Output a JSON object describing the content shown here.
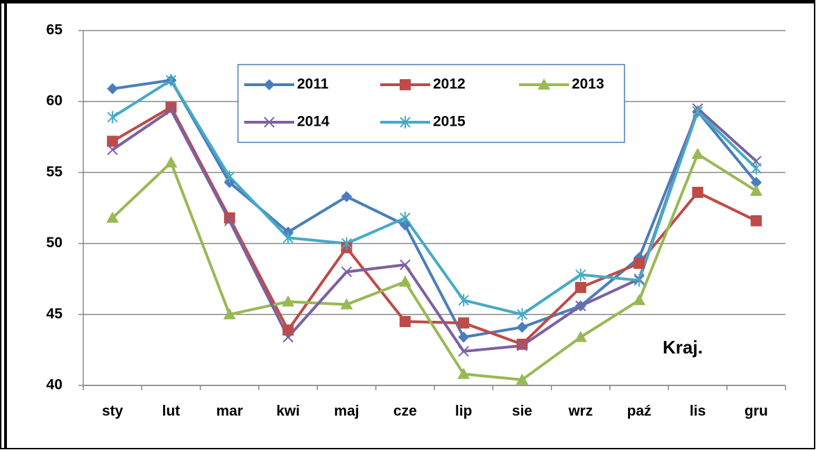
{
  "chart_data": {
    "type": "line",
    "categories": [
      "sty",
      "lut",
      "mar",
      "kwi",
      "maj",
      "cze",
      "lip",
      "sie",
      "wrz",
      "paź",
      "lis",
      "gru"
    ],
    "series": [
      {
        "name": "2011",
        "color": "#4a7ebb",
        "marker": "diamond",
        "values": [
          60.9,
          61.5,
          54.3,
          50.8,
          53.3,
          51.3,
          43.4,
          44.1,
          45.6,
          49.0,
          59.3,
          54.3
        ]
      },
      {
        "name": "2012",
        "color": "#be4b48",
        "marker": "square",
        "values": [
          57.2,
          59.6,
          51.8,
          43.9,
          49.7,
          44.5,
          44.4,
          42.9,
          46.9,
          48.6,
          53.6,
          51.6
        ]
      },
      {
        "name": "2013",
        "color": "#98b954",
        "marker": "triangle",
        "values": [
          51.8,
          55.7,
          45.0,
          45.9,
          45.7,
          47.3,
          40.8,
          40.4,
          43.4,
          46.0,
          56.3,
          53.7
        ]
      },
      {
        "name": "2014",
        "color": "#7d60a0",
        "marker": "cross",
        "values": [
          56.6,
          59.4,
          51.6,
          43.4,
          48.0,
          48.5,
          42.4,
          42.8,
          45.6,
          47.5,
          59.5,
          55.8
        ]
      },
      {
        "name": "2015",
        "color": "#46aac5",
        "marker": "star",
        "values": [
          58.9,
          61.5,
          54.7,
          50.4,
          50.0,
          51.8,
          46.0,
          45.0,
          47.8,
          47.4,
          59.3,
          55.3
        ]
      }
    ],
    "annotation": "Kraj.",
    "ylim": [
      40,
      65
    ],
    "yticks": [
      40,
      45,
      50,
      55,
      60,
      65
    ],
    "grid": true
  }
}
